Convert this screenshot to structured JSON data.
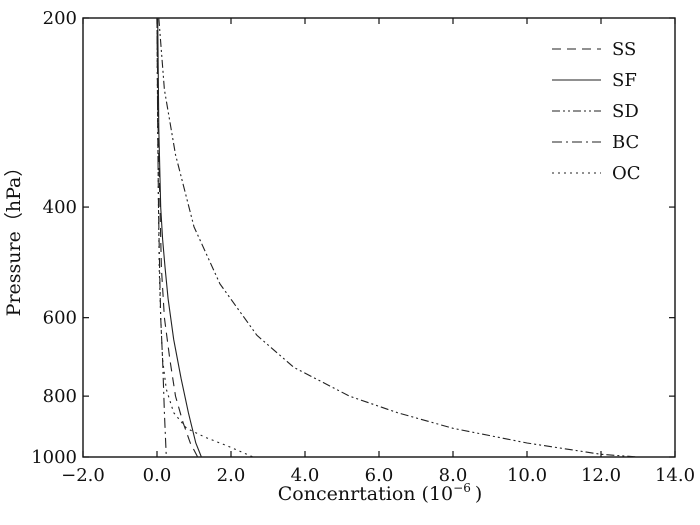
{
  "chart_data": {
    "type": "line",
    "xlabel": "Concenrtation (10",
    "xlabel_exp": "−6",
    "xlabel_end": ")",
    "ylabel": "Pressure（hPa）",
    "xlim": [
      -2.0,
      14.0
    ],
    "ylim": [
      1000,
      200
    ],
    "y_scale": "log",
    "xticks": [
      -2.0,
      0.0,
      2.0,
      4.0,
      6.0,
      8.0,
      10.0,
      12.0,
      14.0
    ],
    "xtick_labels": [
      "−2.0",
      "0.0",
      "2.0",
      "4.0",
      "6.0",
      "8.0",
      "10.0",
      "12.0",
      "14.0"
    ],
    "yticks": [
      200,
      400,
      600,
      800,
      1000
    ],
    "ytick_labels": [
      "200",
      "400",
      "600",
      "800",
      "1000"
    ],
    "grid": false,
    "legend_position": "top-right",
    "series": [
      {
        "name": "SS",
        "dash": "9 6",
        "x": [
          0.0,
          0.03,
          0.08,
          0.12,
          0.2,
          0.35,
          0.5,
          0.7,
          0.9,
          1.1
        ],
        "y": [
          200,
          300,
          400,
          500,
          600,
          700,
          800,
          880,
          950,
          1000
        ]
      },
      {
        "name": "SF",
        "dash": "none",
        "x": [
          0.02,
          0.05,
          0.1,
          0.15,
          0.22,
          0.3,
          0.45,
          0.65,
          0.85,
          1.05,
          1.2
        ],
        "y": [
          200,
          300,
          400,
          450,
          500,
          560,
          650,
          750,
          850,
          950,
          1000
        ]
      },
      {
        "name": "SD",
        "dash": "8 3 2 3 2 3",
        "x": [
          0.05,
          0.2,
          0.5,
          1.0,
          1.7,
          2.7,
          3.7,
          5.2,
          6.5,
          8.0,
          10.0,
          12.0,
          13.0
        ],
        "y": [
          200,
          260,
          330,
          430,
          530,
          640,
          720,
          800,
          850,
          900,
          950,
          990,
          1000
        ]
      },
      {
        "name": "BC",
        "dash": "10 4 2 4",
        "x": [
          0.0,
          0.02,
          0.04,
          0.07,
          0.1,
          0.15,
          0.2,
          0.25
        ],
        "y": [
          200,
          300,
          400,
          500,
          600,
          700,
          850,
          1000
        ]
      },
      {
        "name": "OC",
        "dash": "2 4",
        "x": [
          0.0,
          0.02,
          0.04,
          0.06,
          0.1,
          0.15,
          0.25,
          0.45,
          0.8,
          1.3,
          1.9,
          2.6
        ],
        "y": [
          200,
          300,
          400,
          500,
          600,
          700,
          780,
          850,
          900,
          930,
          960,
          1000
        ]
      }
    ]
  }
}
